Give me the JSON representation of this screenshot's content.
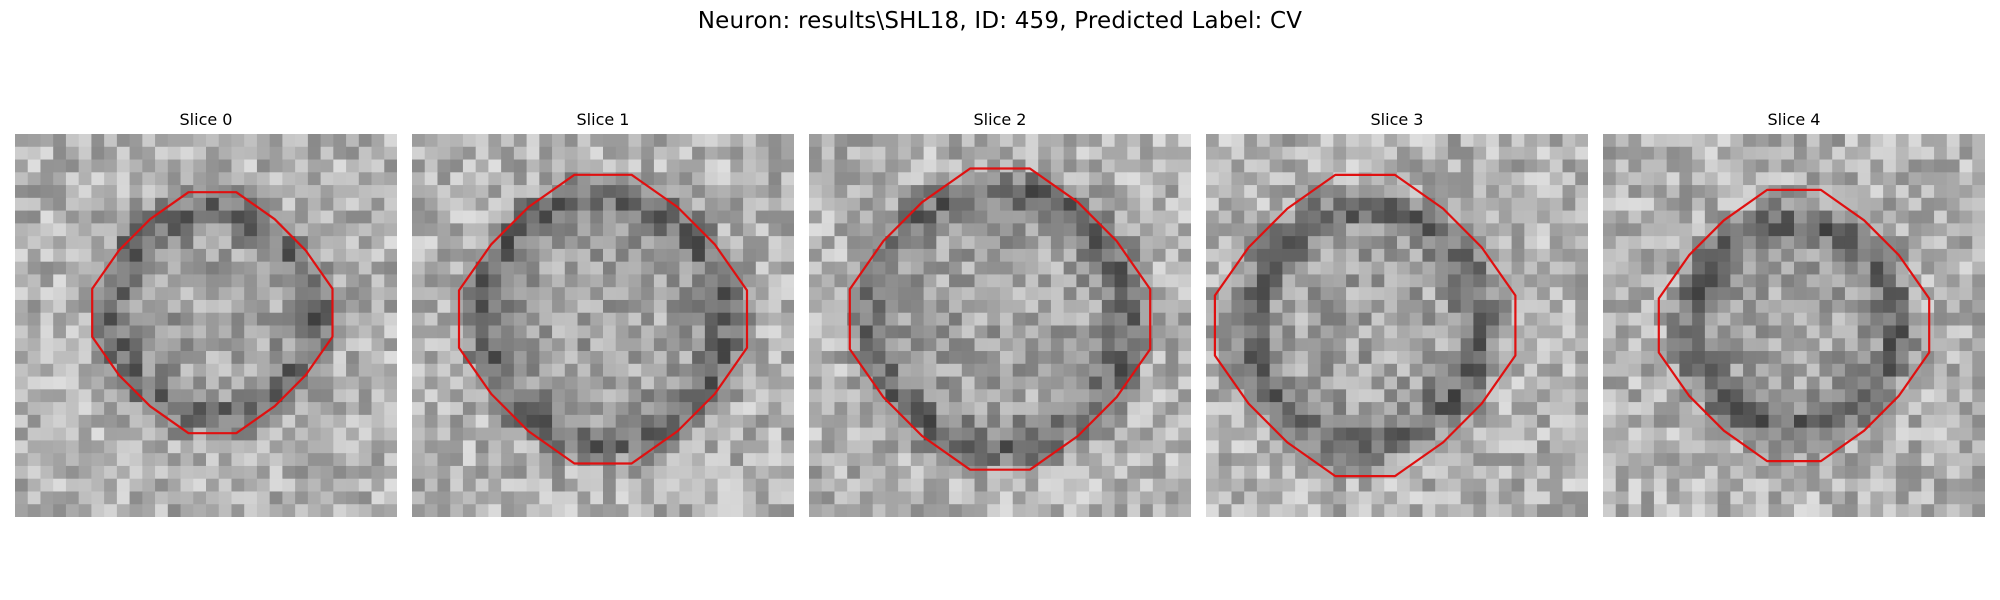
{
  "figure": {
    "title": "Neuron: results\\SHL18, ID: 459, Predicted Label: CV"
  },
  "slices": [
    {
      "label": "Slice 0"
    },
    {
      "label": "Slice 1"
    },
    {
      "label": "Slice 2"
    },
    {
      "label": "Slice 3"
    },
    {
      "label": "Slice 4"
    }
  ],
  "colors": {
    "contour": "#e01010",
    "background": "#ffffff"
  }
}
